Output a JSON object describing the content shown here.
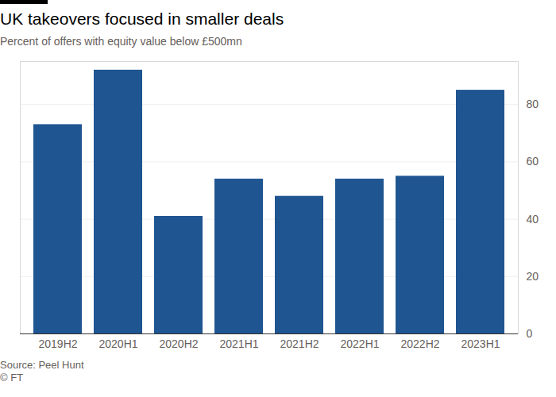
{
  "chart_data": {
    "type": "bar",
    "title": "UK takeovers focused in smaller deals",
    "subtitle": "Percent of offers with equity value below £500mn",
    "categories": [
      "2019H2",
      "2020H1",
      "2020H2",
      "2021H1",
      "2021H2",
      "2022H1",
      "2022H2",
      "2023H1"
    ],
    "values": [
      73,
      92,
      41,
      54,
      48,
      54,
      55,
      85
    ],
    "color": "#1f5591",
    "ylim": [
      0,
      95
    ],
    "yticks": [
      0,
      20,
      40,
      60,
      80
    ],
    "grid": true,
    "source": "Source: Peel Hunt",
    "credit": "© FT"
  }
}
